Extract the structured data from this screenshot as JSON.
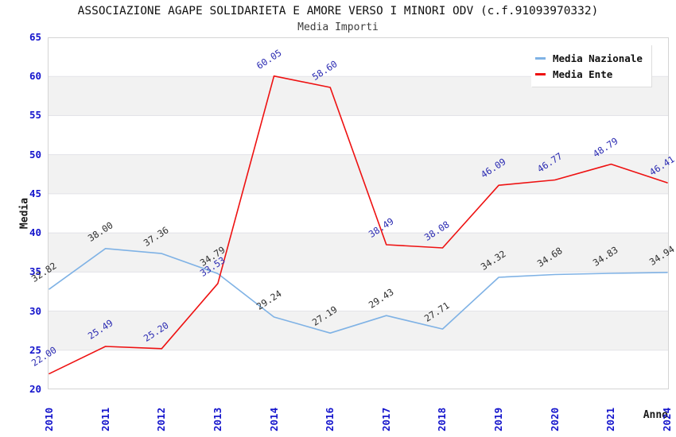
{
  "chart_data": {
    "type": "line",
    "title": "ASSOCIAZIONE AGAPE SOLIDARIETA E AMORE VERSO I MINORI ODV (c.f.91093970332)",
    "subtitle": "Media Importi",
    "xlabel": "Anno",
    "ylabel": "Media",
    "x": [
      "2010",
      "2011",
      "2012",
      "2013",
      "2014",
      "2016",
      "2017",
      "2018",
      "2019",
      "2020",
      "2021",
      "2024"
    ],
    "series": [
      {
        "name": "Media Nazionale",
        "color": "#7fb2e5",
        "label_color": "#2e2e2e",
        "values": [
          32.82,
          38.0,
          37.36,
          34.79,
          29.24,
          27.19,
          29.43,
          27.71,
          34.32,
          34.68,
          34.83,
          34.94
        ]
      },
      {
        "name": "Media Ente",
        "color": "#ee1111",
        "label_color": "#2b2bb2",
        "values": [
          22.0,
          25.49,
          25.2,
          33.53,
          60.05,
          58.6,
          38.49,
          38.08,
          46.09,
          46.77,
          48.79,
          46.41
        ]
      }
    ],
    "ylim": [
      20,
      65
    ],
    "y_ticks": [
      65,
      60,
      55,
      50,
      45,
      40,
      35,
      30,
      25,
      20
    ],
    "grid": "horizontal gridlines with alternating gray bands",
    "band_color": "#f2f2f2",
    "gridline_color": "#e3e3e8",
    "tick_color": "#1414cc",
    "legend_position": "top-right",
    "point_labels": "values shown rotated at each point"
  }
}
